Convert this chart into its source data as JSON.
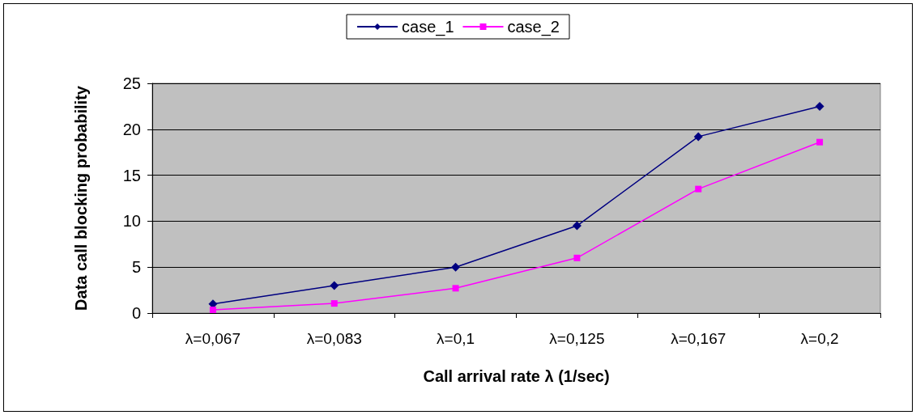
{
  "chart_data": {
    "type": "line",
    "xlabel": "Call arrival rate λ (1/sec)",
    "ylabel": "Data call blocking probability",
    "categories": [
      "λ=0,067",
      "λ=0,083",
      "λ=0,1",
      "λ=0,125",
      "λ=0,167",
      "λ=0,2"
    ],
    "series": [
      {
        "name": "case_1",
        "color": "#000080",
        "marker": "diamond",
        "values": [
          1.0,
          3.0,
          5.0,
          9.5,
          19.2,
          22.5
        ]
      },
      {
        "name": "case_2",
        "color": "#ff00ff",
        "marker": "square",
        "values": [
          0.35,
          1.05,
          2.7,
          6.0,
          13.5,
          18.6
        ]
      }
    ],
    "ylim": [
      0,
      25
    ],
    "yticks": [
      0,
      5,
      10,
      15,
      20,
      25
    ],
    "grid": "y",
    "legend": "top",
    "line_style": "solid"
  }
}
